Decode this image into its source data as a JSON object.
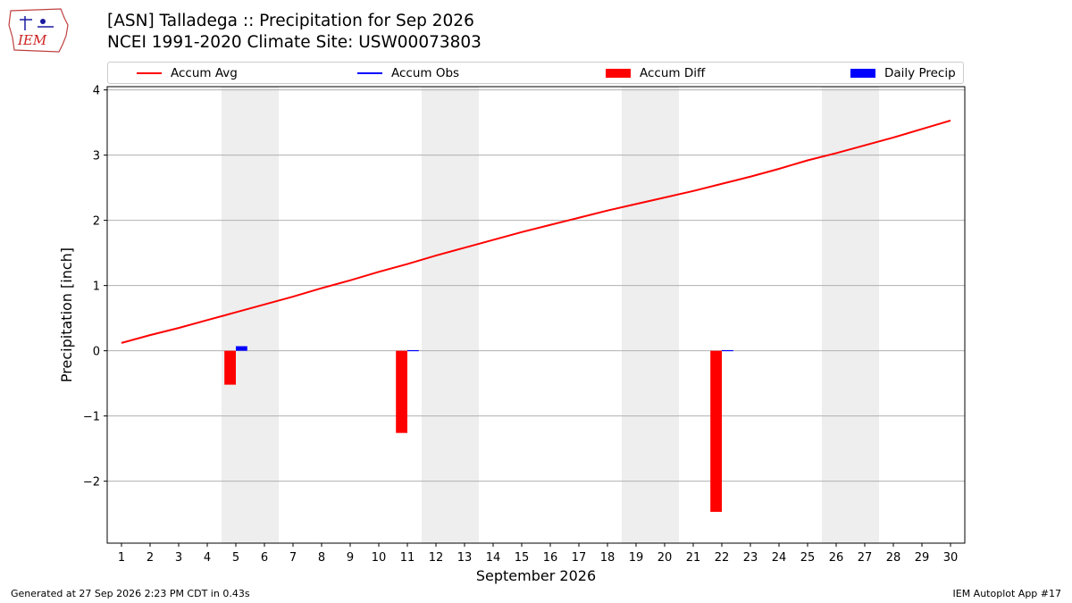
{
  "header": {
    "title_line1": "[ASN] Talladega :: Precipitation for Sep 2026",
    "title_line2": "NCEI 1991-2020 Climate Site: USW00073803",
    "logo_text": "IEM"
  },
  "footer": {
    "generated": "Generated at 27 Sep 2026 2:23 PM CDT in 0.43s",
    "app": "IEM Autoplot App #17"
  },
  "colors": {
    "accum_avg": "#ff0000",
    "accum_obs": "#0000ff",
    "accum_diff": "#ff0000",
    "daily_precip": "#0000ff",
    "weekend_band": "#eeeeee",
    "grid": "#b0b0b0"
  },
  "chart_data": {
    "type": "bar",
    "xlabel": "September 2026",
    "ylabel": "Precipitation [inch]",
    "ylim": [
      -2.95,
      4.05
    ],
    "yticks": [
      -2,
      -1,
      0,
      1,
      2,
      3,
      4
    ],
    "ytick_labels": [
      "−2",
      "−1",
      "0",
      "1",
      "2",
      "3",
      "4"
    ],
    "x": [
      1,
      2,
      3,
      4,
      5,
      6,
      7,
      8,
      9,
      10,
      11,
      12,
      13,
      14,
      15,
      16,
      17,
      18,
      19,
      20,
      21,
      22,
      23,
      24,
      25,
      26,
      27,
      28,
      29,
      30
    ],
    "x_tick_labels": [
      "1",
      "2",
      "3",
      "4",
      "5",
      "6",
      "7",
      "8",
      "9",
      "10",
      "11",
      "12",
      "13",
      "14",
      "15",
      "16",
      "17",
      "18",
      "19",
      "20",
      "21",
      "22",
      "23",
      "24",
      "25",
      "26",
      "27",
      "28",
      "29",
      "30"
    ],
    "weekend_bands": [
      [
        4.5,
        6.5
      ],
      [
        11.5,
        13.5
      ],
      [
        18.5,
        20.5
      ],
      [
        25.5,
        27.5
      ]
    ],
    "legend": [
      "Accum Avg",
      "Accum Obs",
      "Accum Diff",
      "Daily Precip"
    ],
    "grid": "y",
    "series": [
      {
        "name": "Accum Avg",
        "type": "line",
        "values": [
          0.12,
          0.24,
          0.35,
          0.47,
          0.59,
          0.71,
          0.83,
          0.96,
          1.08,
          1.21,
          1.33,
          1.46,
          1.58,
          1.7,
          1.82,
          1.93,
          2.04,
          2.15,
          2.25,
          2.35,
          2.45,
          2.56,
          2.67,
          2.79,
          2.92,
          3.03,
          3.15,
          3.27,
          3.4,
          3.53
        ]
      },
      {
        "name": "Accum Diff",
        "type": "bar",
        "x": [
          5,
          11,
          22
        ],
        "values": [
          -0.52,
          -1.26,
          -2.47
        ]
      },
      {
        "name": "Daily Precip",
        "type": "bar",
        "x": [
          5,
          11,
          22
        ],
        "values": [
          0.07,
          0.01,
          0.01
        ]
      }
    ]
  }
}
